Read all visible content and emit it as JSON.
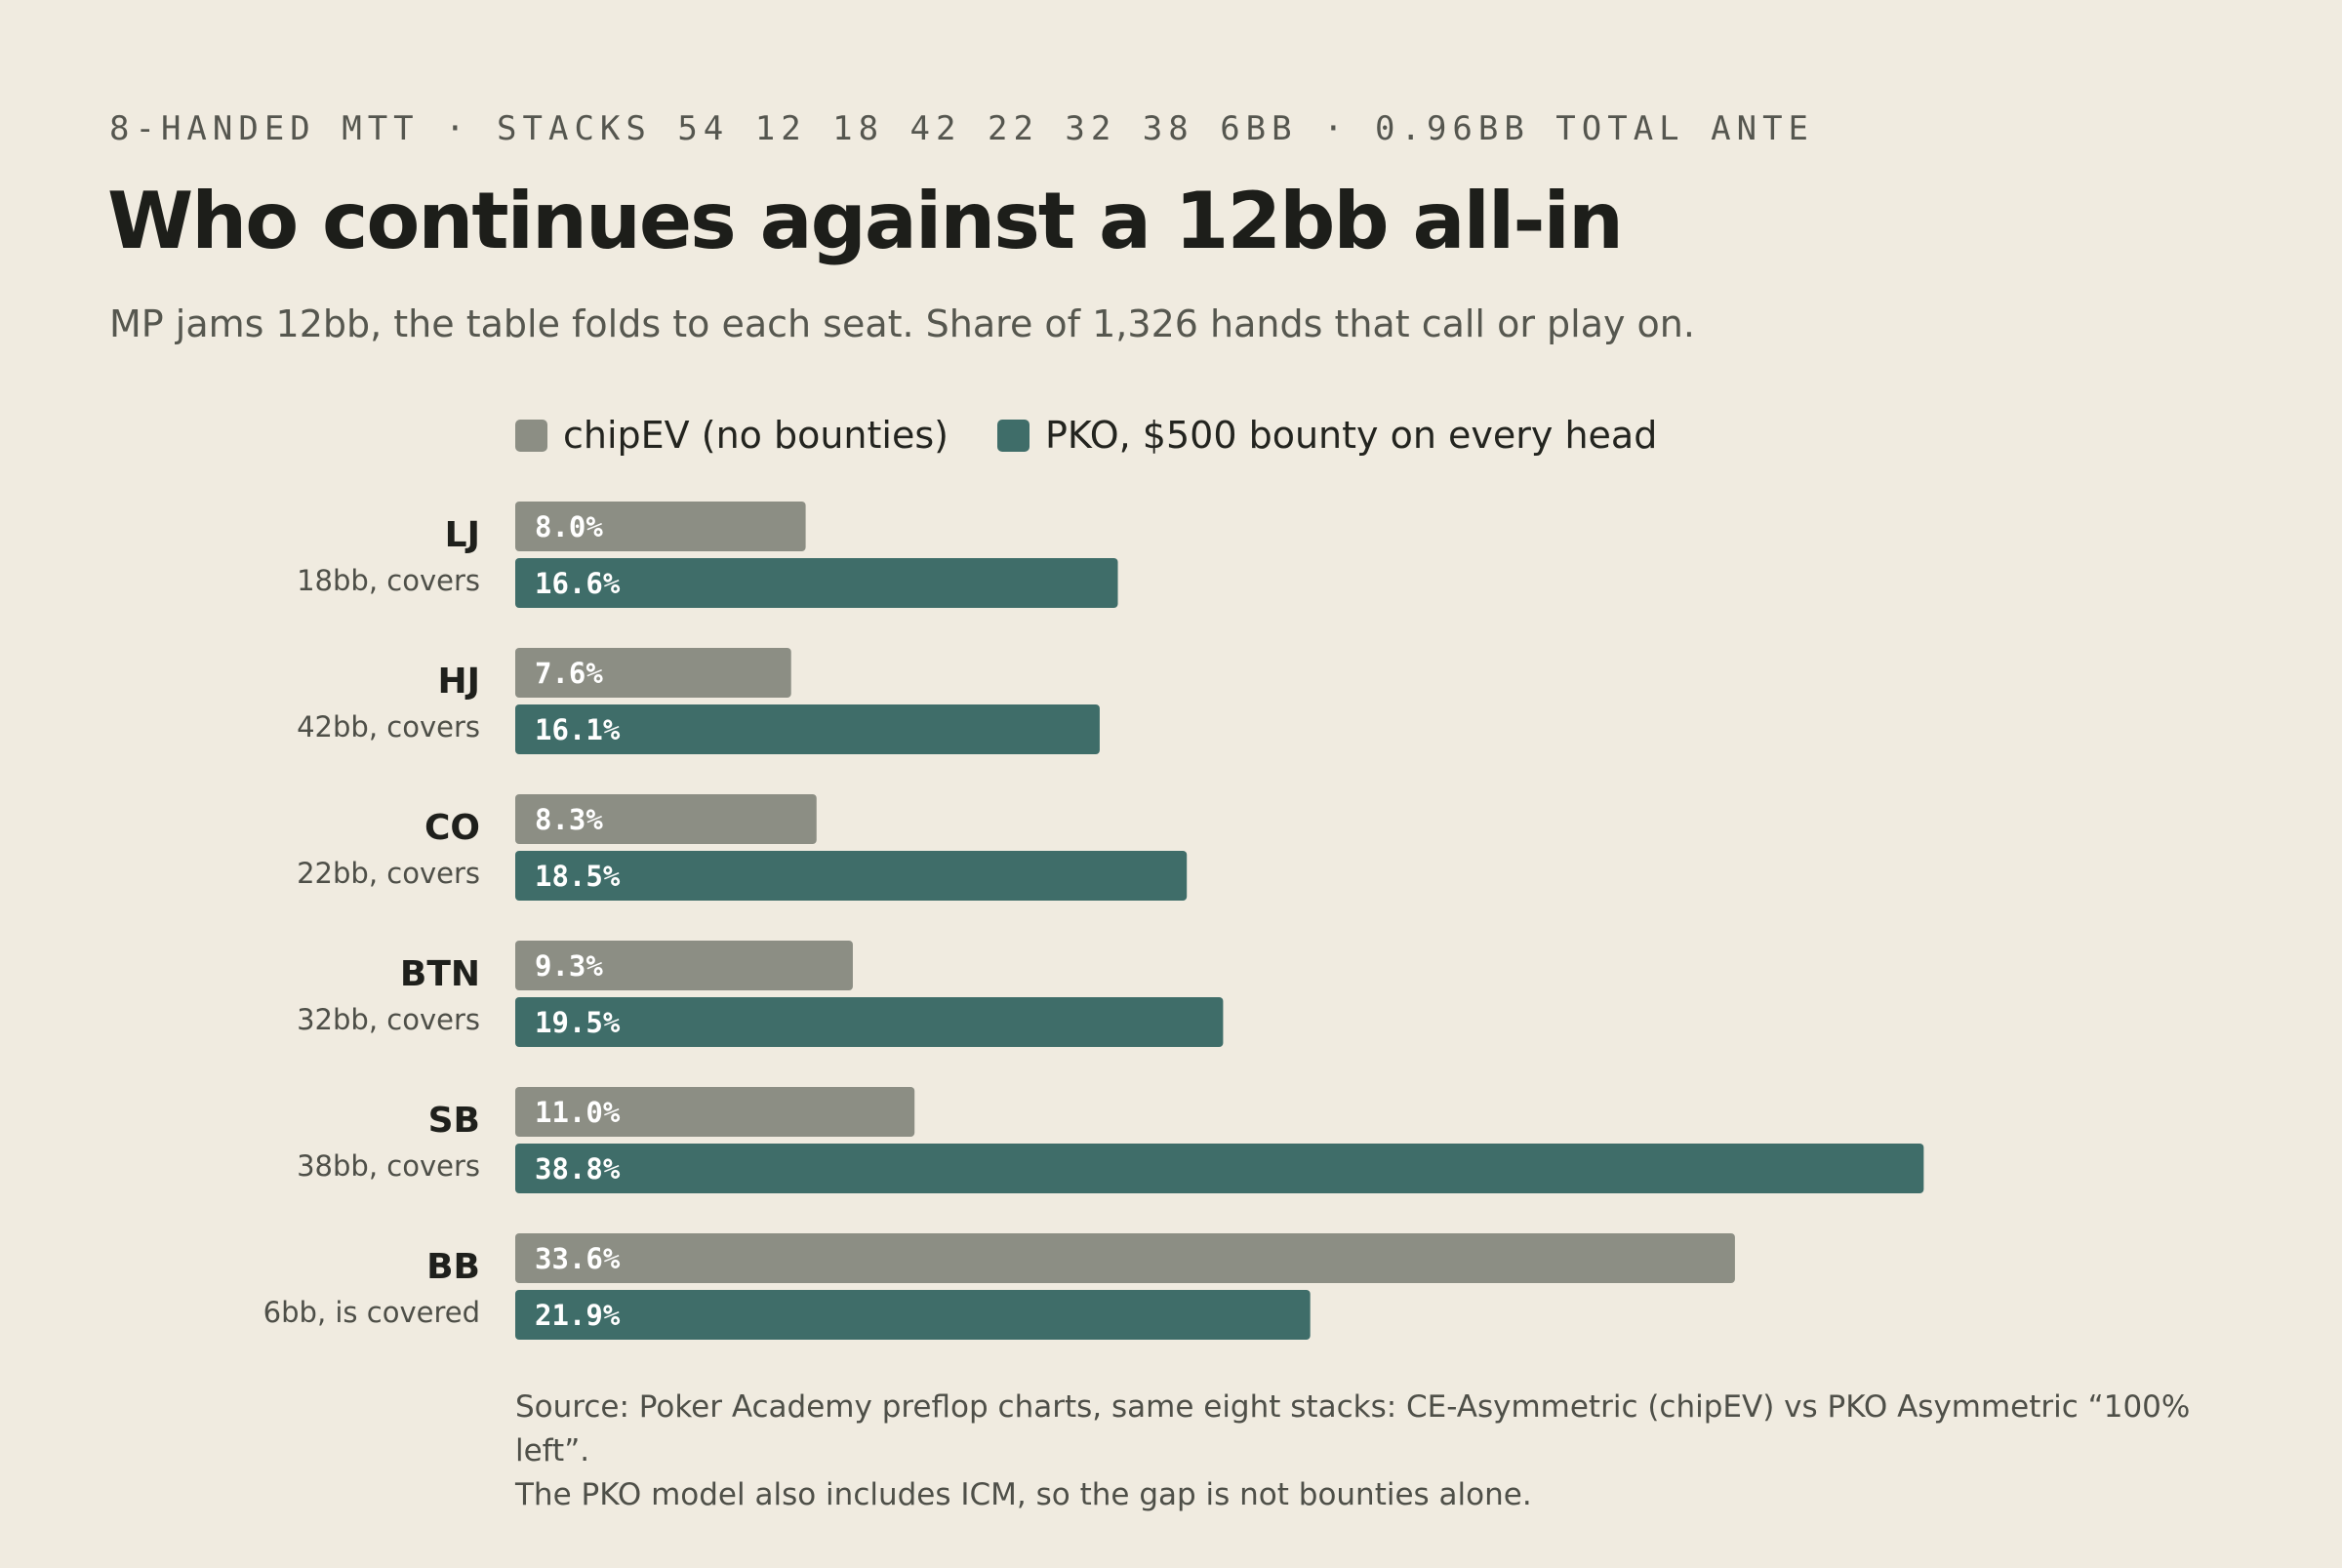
{
  "header": {
    "kicker": "8-HANDED MTT · STACKS 54 12 18 42 22 32 38 6BB · 0.96BB TOTAL ANTE",
    "title": "Who continues against a 12bb all-in",
    "subtitle": "MP jams 12bb, the table folds to each seat. Share of 1,326 hands that call or play on."
  },
  "colors": {
    "chipev": "#8c8e84",
    "pko": "#3f6d69",
    "background": "#f0ebe0"
  },
  "chart_data": {
    "type": "bar",
    "orientation": "horizontal",
    "categories": [
      "LJ",
      "HJ",
      "CO",
      "BTN",
      "SB",
      "BB"
    ],
    "category_notes": [
      "18bb, covers",
      "42bb, covers",
      "22bb, covers",
      "32bb, covers",
      "38bb, covers",
      "6bb, is covered"
    ],
    "series": [
      {
        "name": "chipEV (no bounties)",
        "values": [
          8.0,
          7.6,
          8.3,
          9.3,
          11.0,
          33.6
        ],
        "labels": [
          "8.0%",
          "7.6%",
          "8.3%",
          "9.3%",
          "11.0%",
          "33.6%"
        ]
      },
      {
        "name": "PKO, $500 bounty on every head",
        "values": [
          16.6,
          16.1,
          18.5,
          19.5,
          38.8,
          21.9
        ],
        "labels": [
          "16.6%",
          "16.1%",
          "18.5%",
          "19.5%",
          "38.8%",
          "21.9%"
        ]
      }
    ],
    "xlim": [
      0,
      40
    ],
    "grid": false,
    "legend_position": "top-left"
  },
  "footer": {
    "source_line1": "Source: Poker Academy preflop charts, same eight stacks: CE-Asymmetric (chipEV) vs PKO Asymmetric “100% left”.",
    "source_line2": "The PKO model also includes ICM, so the gap is not bounties alone."
  }
}
